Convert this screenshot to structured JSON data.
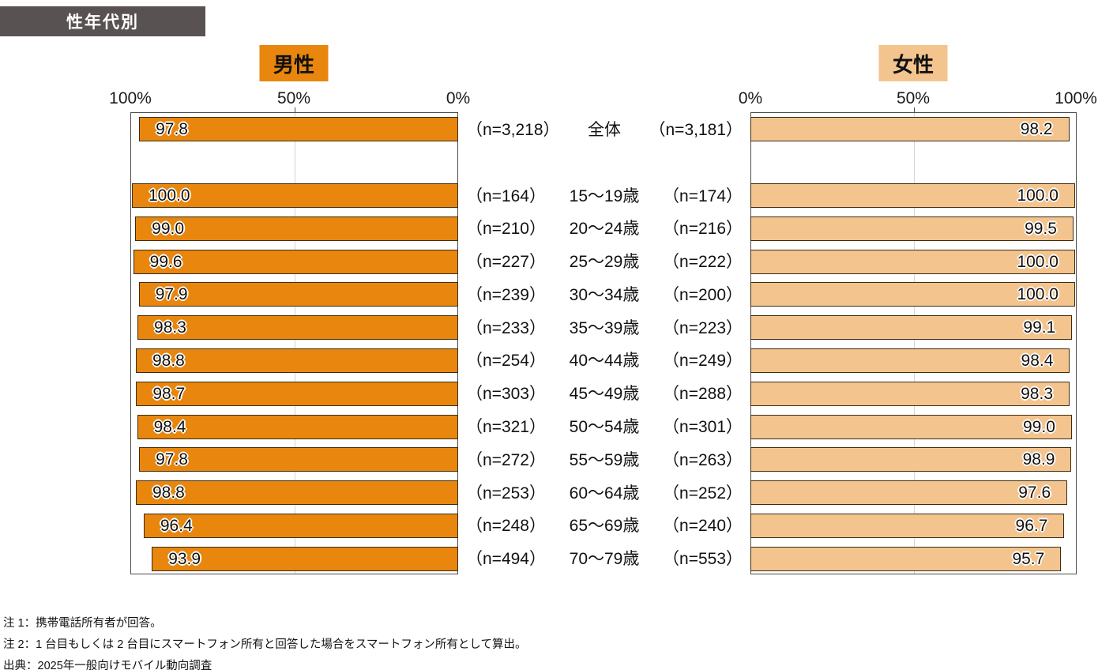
{
  "title": "性年代別",
  "legend": {
    "male": "男性",
    "female": "女性"
  },
  "axis": {
    "male_ticks": [
      "100%",
      "50%",
      "0%"
    ],
    "female_ticks": [
      "0%",
      "50%",
      "100%"
    ]
  },
  "colors": {
    "male_bar": "#E8860E",
    "female_bar": "#F4C48E",
    "bar_border": "#3B2D12",
    "title_bg": "#595252",
    "plot_border": "#4D4D4D",
    "gridline": "#D4D4D4"
  },
  "chart_data": {
    "type": "bar",
    "layout": "tornado-horizontal",
    "title": "性年代別",
    "unit": "%",
    "xlim": [
      0,
      100
    ],
    "ticks_percent": [
      0,
      50,
      100
    ],
    "grid": "vertical line at 50%",
    "categories": [
      "全体",
      "15〜19歳",
      "20〜24歳",
      "25〜29歳",
      "30〜34歳",
      "35〜39歳",
      "40〜44歳",
      "45〜49歳",
      "50〜54歳",
      "55〜59歳",
      "60〜64歳",
      "65〜69歳",
      "70〜79歳"
    ],
    "series": [
      {
        "name": "男性",
        "direction": "right-to-left",
        "values": [
          97.8,
          100.0,
          99.0,
          99.6,
          97.9,
          98.3,
          98.8,
          98.7,
          98.4,
          97.8,
          98.8,
          96.4,
          93.9
        ],
        "n": [
          3218,
          164,
          210,
          227,
          239,
          233,
          254,
          303,
          321,
          272,
          253,
          248,
          494
        ]
      },
      {
        "name": "女性",
        "direction": "left-to-right",
        "values": [
          98.2,
          100.0,
          99.5,
          100.0,
          100.0,
          99.1,
          98.4,
          98.3,
          99.0,
          98.9,
          97.6,
          96.7,
          95.7
        ],
        "n": [
          3181,
          174,
          216,
          222,
          200,
          223,
          249,
          288,
          301,
          263,
          252,
          240,
          553
        ]
      }
    ],
    "center_labels": [
      {
        "male_n": "（n=3,218）",
        "label": "全体",
        "female_n": "（n=3,181）"
      },
      {
        "male_n": "（n=164）",
        "label": "15〜19歳",
        "female_n": "（n=174）"
      },
      {
        "male_n": "（n=210）",
        "label": "20〜24歳",
        "female_n": "（n=216）"
      },
      {
        "male_n": "（n=227）",
        "label": "25〜29歳",
        "female_n": "（n=222）"
      },
      {
        "male_n": "（n=239）",
        "label": "30〜34歳",
        "female_n": "（n=200）"
      },
      {
        "male_n": "（n=233）",
        "label": "35〜39歳",
        "female_n": "（n=223）"
      },
      {
        "male_n": "（n=254）",
        "label": "40〜44歳",
        "female_n": "（n=249）"
      },
      {
        "male_n": "（n=303）",
        "label": "45〜49歳",
        "female_n": "（n=288）"
      },
      {
        "male_n": "（n=321）",
        "label": "50〜54歳",
        "female_n": "（n=301）"
      },
      {
        "male_n": "（n=272）",
        "label": "55〜59歳",
        "female_n": "（n=263）"
      },
      {
        "male_n": "（n=253）",
        "label": "60〜64歳",
        "female_n": "（n=252）"
      },
      {
        "male_n": "（n=248）",
        "label": "65〜69歳",
        "female_n": "（n=240）"
      },
      {
        "male_n": "（n=494）",
        "label": "70〜79歳",
        "female_n": "（n=553）"
      }
    ]
  },
  "notes": [
    "注 1：携帯電話所有者が回答。",
    "注 2：1 台目もしくは 2 台目にスマートフォン所有と回答した場合をスマートフォン所有として算出。",
    "出典：2025年一般向けモバイル動向調査"
  ]
}
